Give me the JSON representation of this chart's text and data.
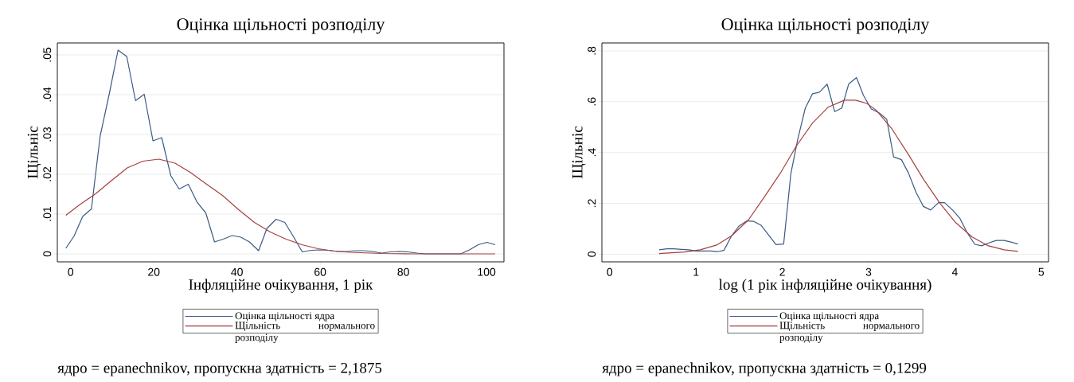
{
  "chart_data": [
    {
      "type": "line",
      "title": "Оцінка щільності розподілу",
      "xlabel": "Інфляційне очікування, 1 рік",
      "ylabel": "Щільніс",
      "annotations": [
        "ядро = epanechnikov, пропускна здатність = 2,1875"
      ],
      "legend": "bottom",
      "grid": "y",
      "xlim": [
        -3.2,
        104.2
      ],
      "ylim": [
        -0.002,
        0.053
      ],
      "xticks": [
        0,
        20,
        40,
        60,
        80,
        100
      ],
      "yticks": [
        {
          "value": 0,
          "label": "0"
        },
        {
          "value": 0.01,
          "label": ".01"
        },
        {
          "value": 0.02,
          "label": ".02"
        },
        {
          "value": 0.03,
          "label": ".03"
        },
        {
          "value": 0.04,
          "label": ".04"
        },
        {
          "value": 0.05,
          "label": ".05"
        }
      ],
      "series": [
        {
          "name": "Оцінка щільності ядра",
          "color": "#3b5b82",
          "x": [
            -1.15,
            0.84,
            2.9,
            5.0,
            7.1,
            9.25,
            11.4,
            13.5,
            15.6,
            17.7,
            19.8,
            21.9,
            24.1,
            26.1,
            28.3,
            30.4,
            32.5,
            34.6,
            36.7,
            38.8,
            40.9,
            43.0,
            45.2,
            47.2,
            49.4,
            51.5,
            53.6,
            55.7,
            57.9,
            59.9,
            62.1,
            64.2,
            66.3,
            68.4,
            70.6,
            72.6,
            74.8,
            76.9,
            79.0,
            81.1,
            83.3,
            85.3,
            87.5,
            89.6,
            91.7,
            93.8,
            95.9,
            98.0,
            100.1,
            102.1
          ],
          "values": [
            0.0014,
            0.0045,
            0.0094,
            0.0113,
            0.0296,
            0.04,
            0.0512,
            0.0496,
            0.0385,
            0.0401,
            0.0284,
            0.0292,
            0.0196,
            0.0163,
            0.0175,
            0.013,
            0.0103,
            0.003,
            0.0037,
            0.0046,
            0.0042,
            0.003,
            0.0008,
            0.0064,
            0.0087,
            0.0079,
            0.0043,
            0.0005,
            0.0009,
            0.001,
            0.0009,
            0.0006,
            0.0006,
            0.0008,
            0.0008,
            0.0006,
            0.0002,
            0.0005,
            0.0006,
            0.0005,
            0.0002,
            0,
            0,
            0,
            0,
            0,
            0.001,
            0.0023,
            0.0029,
            0.0023
          ]
        },
        {
          "name": "Щільність нормального розподілу",
          "color": "#a3403f",
          "x": [
            -1.15,
            2.1,
            6.0,
            9.8,
            13.6,
            17.4,
            21.2,
            25.1,
            28.9,
            32.7,
            36.5,
            40.4,
            44.2,
            48.0,
            51.8,
            55.6,
            59.5,
            63.3,
            67.1,
            74.8,
            82.5,
            102.1
          ],
          "values": [
            0.0097,
            0.0123,
            0.0151,
            0.0184,
            0.0216,
            0.0233,
            0.0238,
            0.0228,
            0.0204,
            0.0175,
            0.0147,
            0.0111,
            0.0079,
            0.0055,
            0.0037,
            0.0023,
            0.0013,
            0.0007,
            0.0004,
            0.0001,
            0,
            0
          ]
        }
      ]
    },
    {
      "type": "line",
      "title": "Оцінка щільності розподілу",
      "xlabel": "log (1 рік інфляційне очікування)",
      "ylabel": "Щільніс",
      "annotations": [
        "ядро = epanechnikov, пропускна здатність = 0,1299"
      ],
      "legend": "bottom",
      "grid": "y",
      "xlim": [
        -0.09,
        5.085
      ],
      "ylim": [
        -0.03,
        0.831
      ],
      "xticks": [
        0,
        1,
        2,
        3,
        4,
        5
      ],
      "yticks": [
        {
          "value": 0,
          "label": "0"
        },
        {
          "value": 0.2,
          "label": ".2"
        },
        {
          "value": 0.4,
          "label": ".4"
        },
        {
          "value": 0.6,
          "label": ".6"
        },
        {
          "value": 0.8,
          "label": ".8"
        }
      ],
      "series": [
        {
          "name": "Оцінка щільності ядра",
          "color": "#3b5b82",
          "x": [
            0.573,
            0.666,
            0.74,
            0.832,
            0.913,
            1.0,
            1.09,
            1.165,
            1.25,
            1.324,
            1.41,
            1.5,
            1.59,
            1.67,
            1.757,
            1.927,
            2.016,
            2.1,
            2.18,
            2.267,
            2.35,
            2.43,
            2.52,
            2.607,
            2.69,
            2.77,
            2.86,
            2.94,
            3.03,
            3.12,
            3.21,
            3.29,
            3.38,
            3.46,
            3.55,
            3.635,
            3.72,
            3.81,
            3.88,
            3.975,
            4.06,
            4.14,
            4.23,
            4.31,
            4.4,
            4.48,
            4.57,
            4.65,
            4.73
          ],
          "values": [
            0.0175,
            0.021,
            0.021,
            0.019,
            0.0175,
            0.0125,
            0.0125,
            0.0125,
            0.01,
            0.015,
            0.071,
            0.111,
            0.131,
            0.129,
            0.113,
            0.0376,
            0.04,
            0.318,
            0.453,
            0.575,
            0.631,
            0.637,
            0.669,
            0.561,
            0.575,
            0.67,
            0.695,
            0.625,
            0.572,
            0.556,
            0.531,
            0.383,
            0.372,
            0.321,
            0.243,
            0.188,
            0.174,
            0.203,
            0.203,
            0.173,
            0.14,
            0.086,
            0.039,
            0.033,
            0.045,
            0.054,
            0.054,
            0.048,
            0.04
          ]
        },
        {
          "name": "Щільність нормального розподілу",
          "color": "#a3403f",
          "x": [
            0.573,
            0.87,
            1.05,
            1.24,
            1.42,
            1.61,
            1.79,
            1.98,
            2.16,
            2.35,
            2.53,
            2.72,
            2.85,
            2.98,
            3.09,
            3.27,
            3.46,
            3.64,
            3.83,
            4.01,
            4.2,
            4.38,
            4.57,
            4.73
          ],
          "values": [
            0.0025,
            0.009,
            0.0175,
            0.036,
            0.074,
            0.136,
            0.224,
            0.32,
            0.424,
            0.516,
            0.578,
            0.606,
            0.606,
            0.593,
            0.566,
            0.493,
            0.393,
            0.293,
            0.199,
            0.124,
            0.068,
            0.034,
            0.0175,
            0.011
          ]
        }
      ]
    }
  ]
}
